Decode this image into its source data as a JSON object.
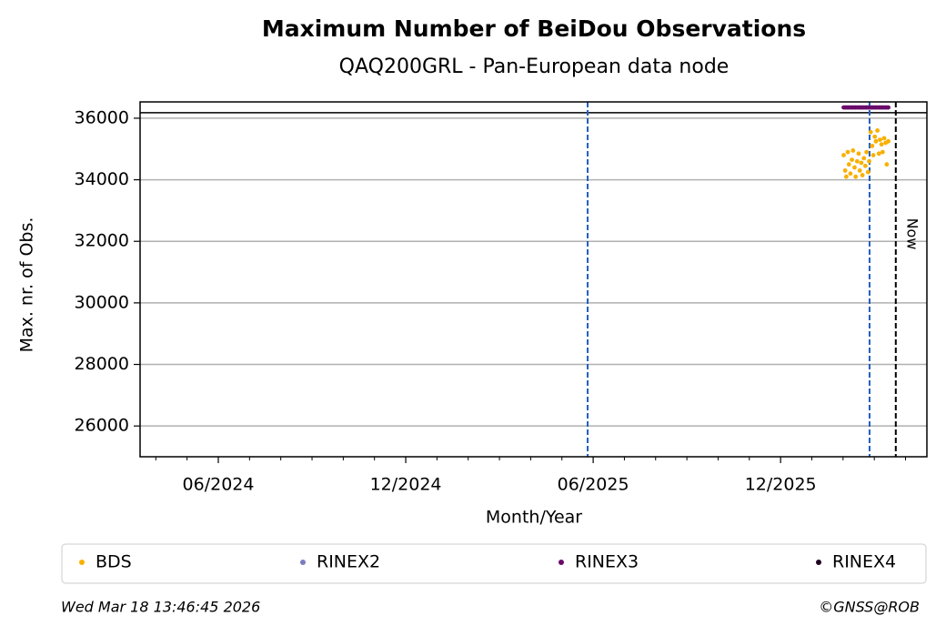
{
  "chart_data": {
    "type": "scatter",
    "title": "Maximum Number of BeiDou Observations",
    "subtitle": "QAQ200GRL - Pan-European data node",
    "xlabel": "Month/Year",
    "ylabel": "Max. nr. of Obs.",
    "xlim": [
      2024.208,
      2026.307
    ],
    "ylim": [
      25000,
      36530
    ],
    "xticks": [
      {
        "value": 2024.4167,
        "label": "06/2024"
      },
      {
        "value": 2024.9167,
        "label": "12/2024"
      },
      {
        "value": 2025.4167,
        "label": "06/2025"
      },
      {
        "value": 2025.9167,
        "label": "12/2025"
      }
    ],
    "xminor_ticks": [
      2024.25,
      2024.3333,
      2024.5,
      2024.5833,
      2024.6667,
      2024.75,
      2024.8333,
      2025.0,
      2025.0833,
      2025.1667,
      2025.25,
      2025.3333,
      2025.5,
      2025.5833,
      2025.6667,
      2025.75,
      2025.8333,
      2026.0,
      2026.0833,
      2026.1667,
      2026.25
    ],
    "yticks": [
      26000,
      28000,
      30000,
      32000,
      34000,
      36000
    ],
    "grid": true,
    "hlines": [
      {
        "value": 36180,
        "color": "#000000"
      }
    ],
    "vlines": [
      {
        "value": 2025.402,
        "color": "#1f5fbf"
      },
      {
        "value": 2026.154,
        "color": "#1f5fbf"
      },
      {
        "value": 2026.224,
        "color": "#000000",
        "label": "Now"
      }
    ],
    "x": [
      2026.085,
      2026.089,
      2026.092,
      2026.096,
      2026.099,
      2026.103,
      2026.107,
      2026.11,
      2026.114,
      2026.117,
      2026.121,
      2026.125,
      2026.128,
      2026.132,
      2026.135,
      2026.139,
      2026.143,
      2026.146,
      2026.15,
      2026.153,
      2026.157,
      2026.161,
      2026.164,
      2026.168,
      2026.171,
      2026.175,
      2026.179,
      2026.182,
      2026.186,
      2026.189,
      2026.193,
      2026.197,
      2026.2,
      2026.204
    ],
    "series": [
      {
        "name": "BDS",
        "color": "#f9b000",
        "values": [
          34800,
          34300,
          34100,
          34900,
          34500,
          34200,
          34650,
          34950,
          34400,
          34100,
          34600,
          34850,
          34300,
          34550,
          34150,
          34700,
          34450,
          34900,
          34250,
          34600,
          35550,
          35100,
          34800,
          35400,
          35250,
          35600,
          34850,
          35300,
          35150,
          34900,
          35350,
          35200,
          34500,
          35250
        ]
      },
      {
        "name": "RINEX2",
        "color": "#7b7bc0",
        "values": [
          null,
          null,
          null,
          null,
          null,
          null,
          null,
          null,
          null,
          null,
          null,
          null,
          null,
          null,
          null,
          null,
          null,
          null,
          null,
          null,
          null,
          null,
          null,
          null,
          null,
          null,
          null,
          null,
          null,
          null,
          null,
          null,
          null,
          null
        ]
      },
      {
        "name": "RINEX3",
        "color": "#6a0a6a",
        "values": [
          36350,
          36350,
          36350,
          36350,
          36350,
          36350,
          36350,
          36350,
          36350,
          36350,
          36350,
          36350,
          36350,
          36350,
          36350,
          36350,
          36350,
          36350,
          36350,
          36350,
          36350,
          36350,
          36350,
          36350,
          36350,
          36350,
          36350,
          36350,
          36350,
          36350,
          36350,
          36350,
          36350,
          36350
        ]
      },
      {
        "name": "RINEX4",
        "color": "#200020",
        "values": [
          null,
          null,
          null,
          null,
          null,
          null,
          null,
          null,
          null,
          null,
          null,
          null,
          null,
          null,
          null,
          null,
          null,
          null,
          null,
          null,
          null,
          null,
          null,
          null,
          null,
          null,
          null,
          null,
          null,
          null,
          null,
          null,
          null,
          null
        ]
      }
    ],
    "timestamp": "Wed Mar 18 13:46:45 2026",
    "copyright": "©GNSS@ROB"
  }
}
